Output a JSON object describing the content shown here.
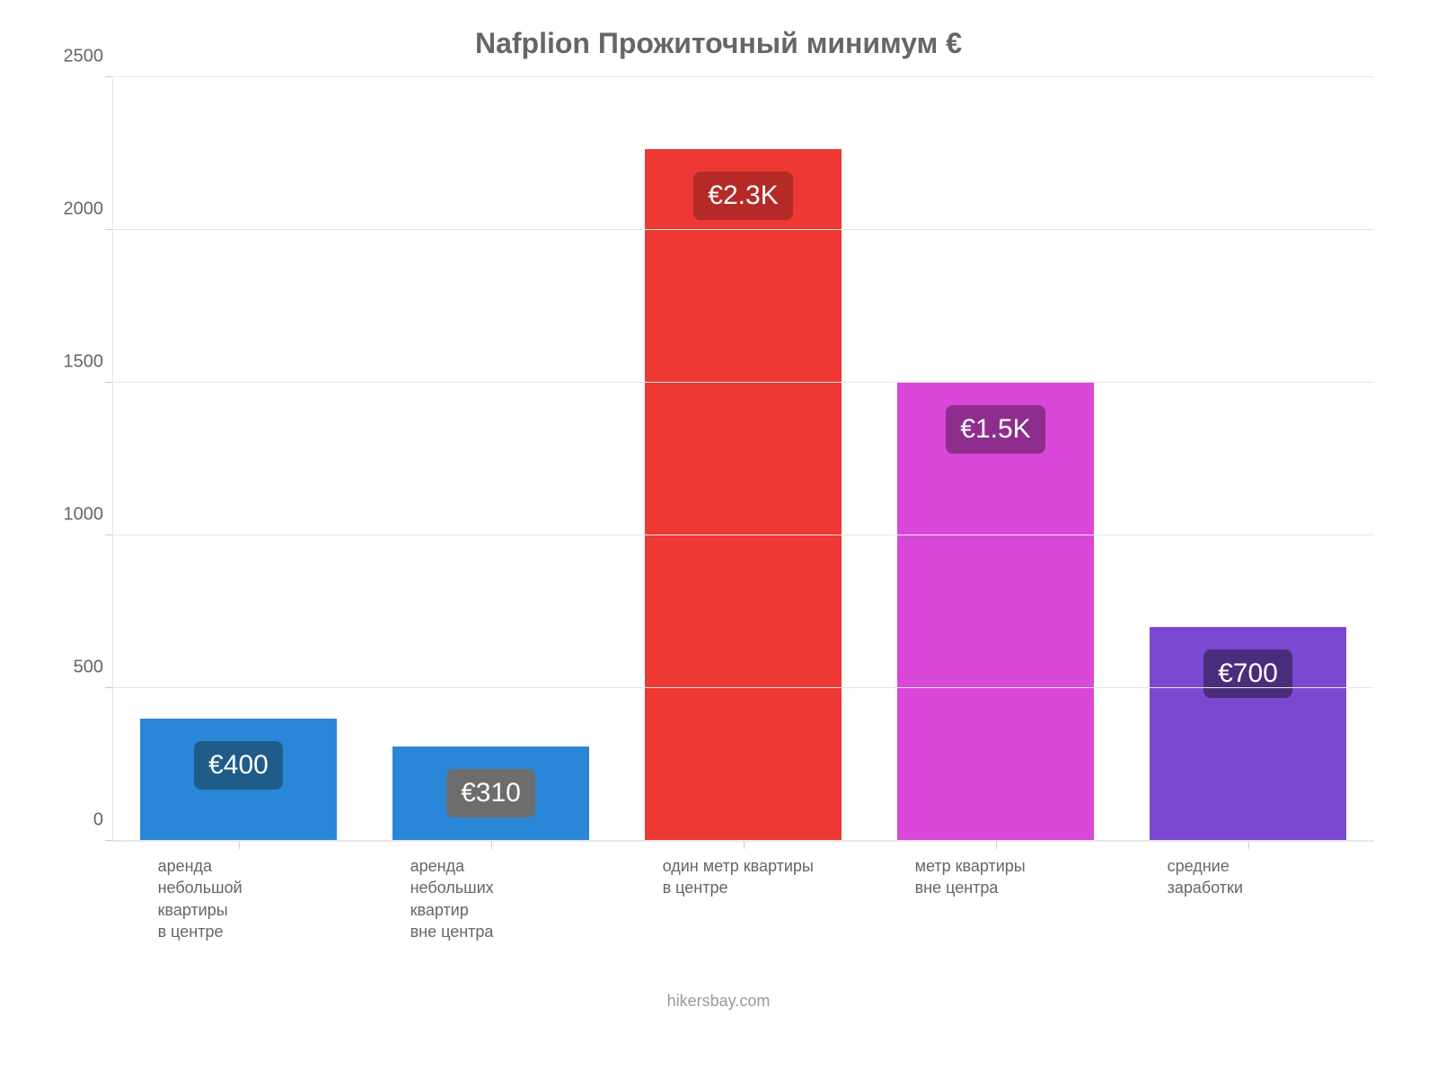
{
  "chart": {
    "type": "bar",
    "title": "Nafplion Прожиточный минимум €",
    "title_color": "#666666",
    "title_fontsize": 32,
    "background_color": "#ffffff",
    "grid_color": "#e6e6e6",
    "axis_label_color": "#666666",
    "axis_label_fontsize": 20,
    "x_label_fontsize": 18,
    "bar_width_ratio": 0.78,
    "ylim": [
      0,
      2500
    ],
    "ytick_step": 500,
    "yticks": [
      0,
      500,
      1000,
      1500,
      2000,
      2500
    ],
    "categories": [
      "аренда\nнебольшой\nквартиры\nв центре",
      "аренда\nнебольших\nквартир\nвне центра",
      "один метр квартиры\nв центре",
      "метр квартиры\nвне центра",
      "средние\nзаработки"
    ],
    "values": [
      400,
      310,
      2266,
      1500,
      700
    ],
    "value_labels": [
      "€400",
      "€310",
      "€2.3K",
      "€1.5K",
      "€700"
    ],
    "bar_colors": [
      "#2a87d8",
      "#2a87d8",
      "#ed3833",
      "#d847d8",
      "#7a48d1"
    ],
    "badge_colors": [
      "#1f5c8a",
      "#6d6d6d",
      "#b52a26",
      "#8f2d8f",
      "#4a2d7a"
    ],
    "badge_text_color": "#ffffff",
    "badge_fontsize": 30,
    "footer": "hikersbay.com",
    "footer_color": "#999999"
  }
}
